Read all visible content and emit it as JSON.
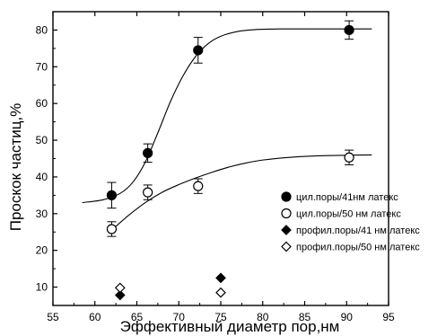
{
  "chart_data": {
    "type": "scatter",
    "xlabel": "Эффективный диаметр пор,нм",
    "ylabel": "Проскок частиц,%",
    "xlim": [
      55,
      95
    ],
    "ylim": [
      5,
      85
    ],
    "xticks": [
      55,
      60,
      65,
      70,
      75,
      80,
      85,
      90,
      95
    ],
    "yticks": [
      10,
      20,
      30,
      40,
      50,
      60,
      70,
      80
    ],
    "grid": false,
    "legend_position": "right",
    "series": [
      {
        "name": "цил.поры/41нм латекс",
        "marker": "filled-circle",
        "x": [
          62,
          66.3,
          72.3,
          90.3
        ],
        "y": [
          35,
          46.5,
          74.5,
          80
        ],
        "error": [
          3.5,
          2.5,
          3.5,
          2.5
        ],
        "fit_curve": {
          "x": [
            58.5,
            61,
            63,
            64.5,
            66,
            67.5,
            69,
            70.5,
            72,
            73.5,
            75,
            77,
            79,
            82,
            86,
            90,
            93
          ],
          "y": [
            33,
            33.8,
            35.5,
            38.5,
            44,
            52,
            60.5,
            67.5,
            72.8,
            76.3,
            78.3,
            79.6,
            80.1,
            80.3,
            80.3,
            80.3,
            80.3
          ]
        }
      },
      {
        "name": "цил.поры/50 нм латекс",
        "marker": "open-circle",
        "x": [
          62,
          66.3,
          72.3,
          90.3
        ],
        "y": [
          25.8,
          35.8,
          37.5,
          45.3
        ],
        "error": [
          2,
          2,
          2,
          2
        ],
        "fit_curve": {
          "x": [
            62,
            64,
            66,
            68,
            70,
            72,
            74,
            76,
            78,
            80,
            83,
            86,
            90,
            93
          ],
          "y": [
            25.5,
            29.5,
            33,
            35.8,
            37.9,
            39.7,
            41.3,
            42.7,
            43.8,
            44.6,
            45.3,
            45.7,
            45.9,
            46
          ]
        }
      },
      {
        "name": "профил.поры/41 нм латекс",
        "marker": "filled-diamond",
        "x": [
          63,
          75
        ],
        "y": [
          7.8,
          12.5
        ]
      },
      {
        "name": "профил.поры/50 нм латекс",
        "marker": "open-diamond",
        "x": [
          63,
          75
        ],
        "y": [
          9.8,
          8.5
        ]
      }
    ]
  }
}
